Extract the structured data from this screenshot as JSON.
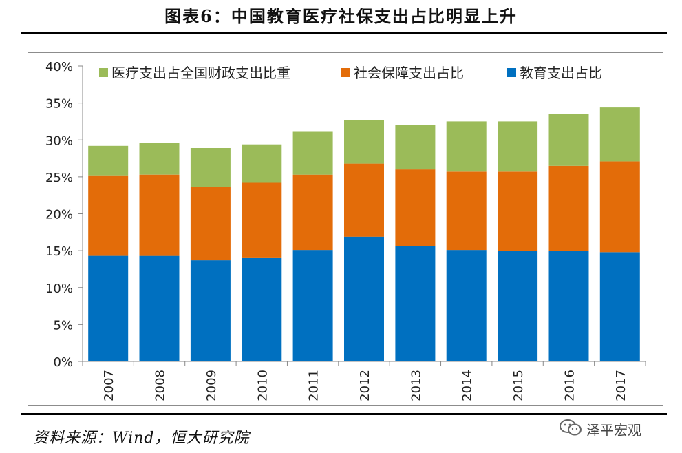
{
  "title": "图表6：中国教育医疗社保支出占比明显上升",
  "source": "资料来源：Wind，恒大研究院",
  "watermark": {
    "text": "泽平宏观",
    "icon": "wechat-icon"
  },
  "colors": {
    "education": "#0070C0",
    "social_security": "#E36C09",
    "medical": "#9BBB59"
  },
  "chart_data": {
    "type": "bar",
    "stacked": true,
    "categories": [
      "2007",
      "2008",
      "2009",
      "2010",
      "2011",
      "2012",
      "2013",
      "2014",
      "2015",
      "2016",
      "2017"
    ],
    "series": [
      {
        "name": "教育支出占比",
        "color": "#0070C0",
        "values": [
          14.3,
          14.3,
          13.7,
          14.0,
          15.1,
          16.9,
          15.6,
          15.1,
          15.0,
          15.0,
          14.8
        ]
      },
      {
        "name": "社会保障支出占比",
        "color": "#E36C09",
        "values": [
          10.9,
          11.0,
          9.9,
          10.2,
          10.2,
          9.9,
          10.4,
          10.6,
          10.7,
          11.5,
          12.3
        ]
      },
      {
        "name": "医疗支出占全国财政支出比重",
        "color": "#9BBB59",
        "values": [
          4.0,
          4.3,
          5.3,
          5.2,
          5.8,
          5.9,
          6.0,
          6.8,
          6.8,
          7.0,
          7.3
        ]
      }
    ],
    "legend_order": [
      "医疗支出占全国财政支出比重",
      "社会保障支出占比",
      "教育支出占比"
    ],
    "ylim": [
      0,
      40
    ],
    "yticks": [
      "0%",
      "5%",
      "10%",
      "15%",
      "20%",
      "25%",
      "30%",
      "35%",
      "40%"
    ],
    "grid": false,
    "legend_position": "top"
  }
}
